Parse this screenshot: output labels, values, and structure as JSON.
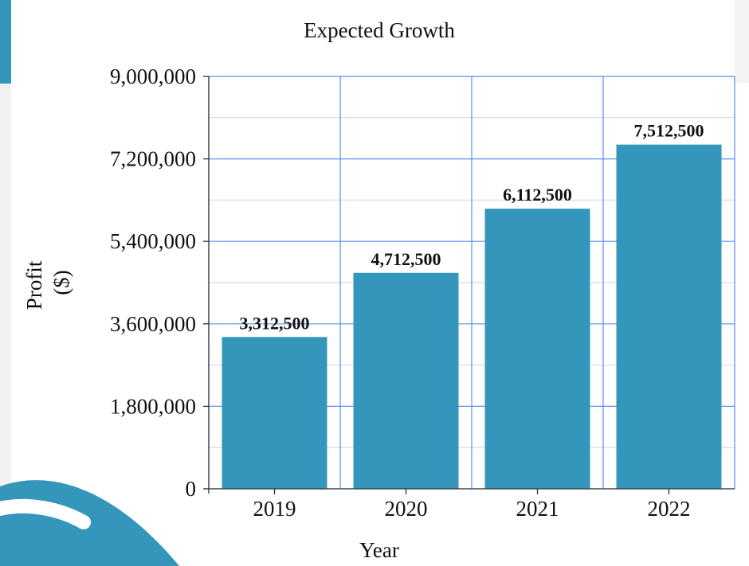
{
  "chart_data": {
    "type": "bar",
    "title": "Expected Growth",
    "xlabel": "Year",
    "ylabel_lines": [
      "Profit",
      "($)"
    ],
    "categories": [
      "2019",
      "2020",
      "2021",
      "2022"
    ],
    "values": [
      3312500,
      4712500,
      6112500,
      7512500
    ],
    "value_labels": [
      "3,312,500",
      "4,712,500",
      "6,112,500",
      "7,512,500"
    ],
    "ylim": [
      0,
      9000000
    ],
    "y_ticks": [
      0,
      1800000,
      3600000,
      5400000,
      7200000,
      9000000
    ],
    "y_tick_labels": [
      "0",
      "1,800,000",
      "3,600,000",
      "5,400,000",
      "7,200,000",
      "9,000,000"
    ],
    "grid": true,
    "colors": {
      "bar": "#3596bc",
      "grid_major": "#5b8def",
      "grid_minor": "#d6e2f7",
      "accent": "#3596bc"
    }
  }
}
